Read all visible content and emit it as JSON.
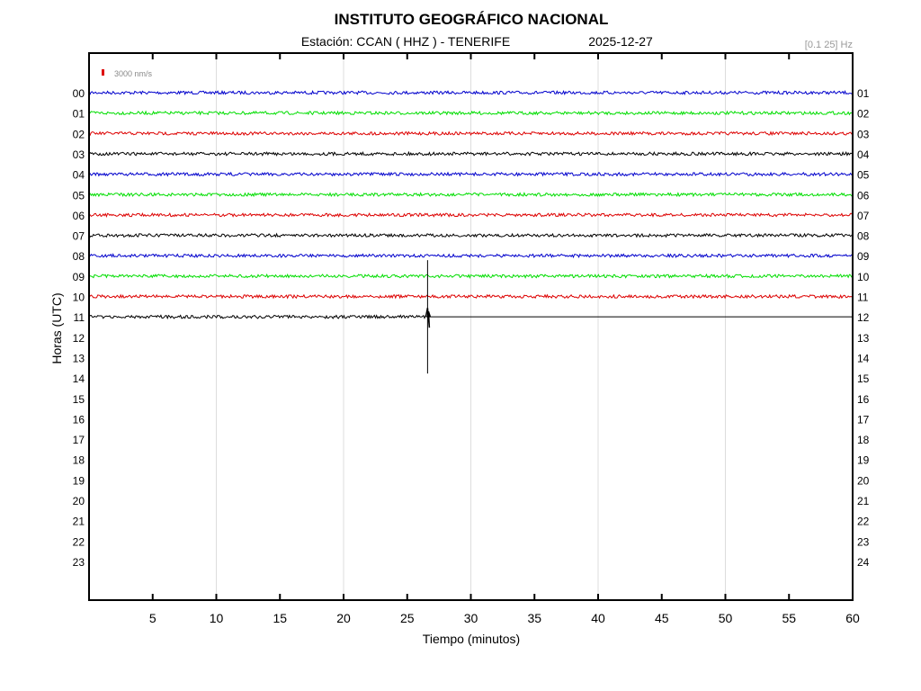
{
  "chart_data": {
    "type": "line",
    "title": "INSTITUTO GEOGRÁFICO NACIONAL",
    "subtitle_station": "Estación:  CCAN ( HHZ ) - TENERIFE",
    "subtitle_date": "2025-12-27",
    "filter": "[0.1 25] Hz",
    "scale_label": "3000 nm/s",
    "xlabel": "Tiempo (minutos)",
    "ylabel": "Horas (UTC)",
    "xlim": [
      0,
      60
    ],
    "xticks": [
      "5",
      "10",
      "15",
      "20",
      "25",
      "30",
      "35",
      "40",
      "45",
      "50",
      "55",
      "60"
    ],
    "left_labels": [
      "00",
      "01",
      "02",
      "03",
      "04",
      "05",
      "06",
      "07",
      "08",
      "09",
      "10",
      "11",
      "12",
      "13",
      "14",
      "15",
      "16",
      "17",
      "18",
      "19",
      "20",
      "21",
      "22",
      "23"
    ],
    "right_labels": [
      "01",
      "02",
      "03",
      "04",
      "05",
      "06",
      "07",
      "08",
      "09",
      "10",
      "11",
      "12",
      "13",
      "14",
      "15",
      "16",
      "17",
      "18",
      "19",
      "20",
      "21",
      "22",
      "23",
      "24"
    ],
    "trace_colors": [
      "#0000cc",
      "#00dd00",
      "#dd0000",
      "#000000"
    ],
    "hours_recorded": 12,
    "last_hour_end_minute": 26.7,
    "event": {
      "hour": 11,
      "minute": 26.6,
      "label": "seismic event"
    },
    "grid": "vertical every 10 min"
  }
}
